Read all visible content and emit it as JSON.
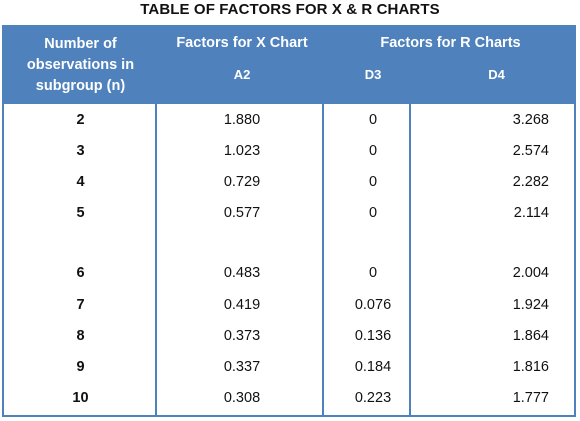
{
  "title": "TABLE OF FACTORS FOR X & R CHARTS",
  "header": {
    "n_label": "Number of observations in subgroup (n)",
    "x_chart": "Factors for X Chart",
    "r_charts": "Factors for R Charts",
    "a2": "A2",
    "d3": "D3",
    "d4": "D4"
  },
  "rows": [
    {
      "n": "2",
      "a2": "1.880",
      "d3": "0",
      "d4": "3.268"
    },
    {
      "n": "3",
      "a2": "1.023",
      "d3": "0",
      "d4": "2.574"
    },
    {
      "n": "4",
      "a2": "0.729",
      "d3": "0",
      "d4": "2.282"
    },
    {
      "n": "5",
      "a2": "0.577",
      "d3": "0",
      "d4": "2.114"
    },
    {
      "n": "6",
      "a2": "0.483",
      "d3": "0",
      "d4": "2.004"
    },
    {
      "n": "7",
      "a2": "0.419",
      "d3": "0.076",
      "d4": "1.924"
    },
    {
      "n": "8",
      "a2": "0.373",
      "d3": "0.136",
      "d4": "1.864"
    },
    {
      "n": "9",
      "a2": "0.337",
      "d3": "0.184",
      "d4": "1.816"
    },
    {
      "n": "10",
      "a2": "0.308",
      "d3": "0.223",
      "d4": "1.777"
    }
  ],
  "colors": {
    "header_bg": "#4f81bd",
    "header_text": "#ffffff"
  }
}
